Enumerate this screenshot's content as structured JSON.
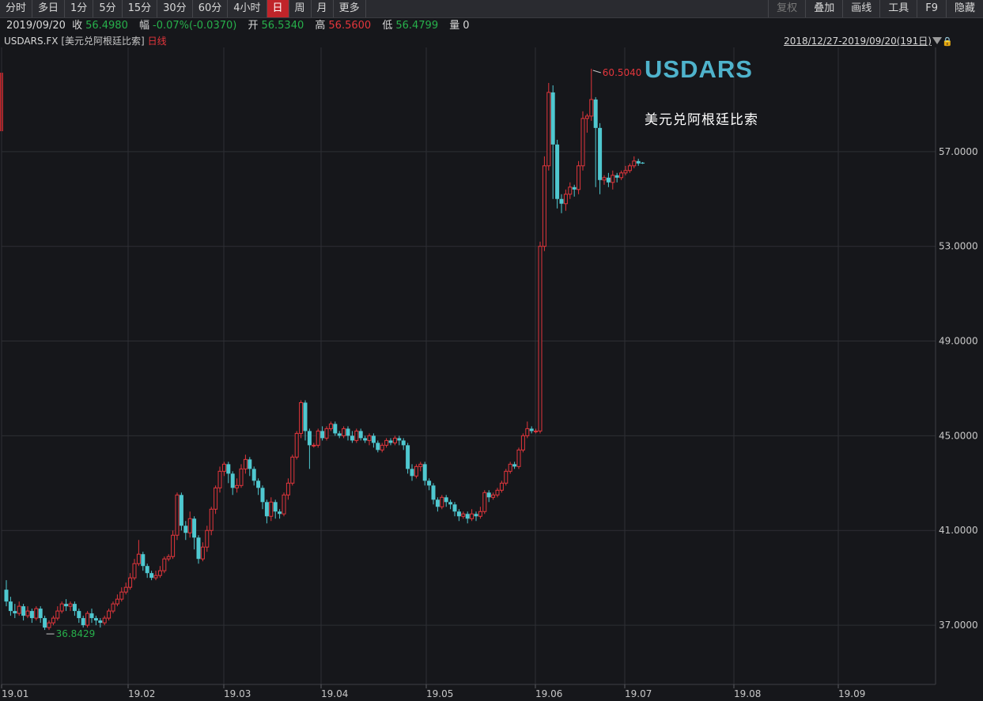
{
  "toolbar": {
    "periods": [
      "分时",
      "多日",
      "1分",
      "5分",
      "15分",
      "30分",
      "60分",
      "4小时",
      "日",
      "周",
      "月",
      "更多"
    ],
    "active_period": "日",
    "right_buttons": [
      "复权",
      "叠加",
      "画线",
      "工具",
      "F9",
      "隐藏"
    ]
  },
  "quote": {
    "date": "2019/09/20",
    "close_label": "收",
    "close": "56.4980",
    "change_label": "幅",
    "change": "-0.07%(-0.0370)",
    "open_label": "开",
    "open": "56.5340",
    "high_label": "高",
    "high": "56.5600",
    "low_label": "低",
    "low": "56.4799",
    "volume_label": "量",
    "volume": "0"
  },
  "info": {
    "symbol": "USDARS.FX",
    "name": "[美元兑阿根廷比索]",
    "type": "日线",
    "range": "2018/12/27-2019/09/20(191日)"
  },
  "watermark": {
    "title": "USDARS",
    "subtitle": "美元兑阿根廷比索"
  },
  "colors": {
    "up": "#e3363c",
    "down": "#4fc8d0",
    "grid": "#2e2f34",
    "background": "#16171b"
  },
  "chart_data": {
    "type": "candlestick",
    "y_ticks": [
      "57.0000",
      "53.0000",
      "49.0000",
      "45.0000",
      "41.0000",
      "37.0000"
    ],
    "x_ticks": [
      "19.01",
      "19.02",
      "19.03",
      "19.04",
      "19.05",
      "19.06",
      "19.07",
      "19.08",
      "19.09"
    ],
    "ylim": [
      34.5,
      61.4
    ],
    "max_label": "60.5040",
    "min_label": "36.8429",
    "grid": true,
    "series": [
      [
        38.5,
        38.0,
        38.9,
        37.8
      ],
      [
        38.0,
        37.6,
        38.2,
        37.4
      ],
      [
        37.6,
        37.5,
        37.9,
        37.3
      ],
      [
        37.5,
        37.8,
        38.0,
        37.4
      ],
      [
        37.8,
        37.4,
        37.9,
        37.2
      ],
      [
        37.4,
        37.6,
        37.8,
        37.3
      ],
      [
        37.6,
        37.3,
        37.7,
        37.1
      ],
      [
        37.3,
        37.7,
        37.8,
        37.2
      ],
      [
        37.7,
        37.3,
        37.8,
        37.1
      ],
      [
        37.3,
        36.9,
        37.4,
        36.8
      ],
      [
        36.9,
        37.1,
        37.2,
        36.8
      ],
      [
        37.1,
        37.3,
        37.4,
        37.0
      ],
      [
        37.3,
        37.6,
        37.8,
        37.2
      ],
      [
        37.6,
        37.9,
        38.0,
        37.5
      ],
      [
        37.9,
        37.8,
        38.1,
        37.6
      ],
      [
        37.8,
        37.9,
        38.0,
        37.6
      ],
      [
        37.9,
        37.6,
        38.0,
        37.4
      ],
      [
        37.6,
        37.3,
        37.7,
        37.1
      ],
      [
        37.3,
        37.0,
        37.4,
        36.9
      ],
      [
        37.0,
        37.5,
        37.6,
        36.9
      ],
      [
        37.5,
        37.3,
        37.7,
        37.1
      ],
      [
        37.3,
        37.2,
        37.4,
        37.0
      ],
      [
        37.2,
        37.1,
        37.3,
        36.9
      ],
      [
        37.1,
        37.3,
        37.4,
        37.0
      ],
      [
        37.3,
        37.6,
        37.7,
        37.2
      ],
      [
        37.6,
        37.9,
        38.0,
        37.5
      ],
      [
        37.9,
        38.1,
        38.3,
        37.8
      ],
      [
        38.1,
        38.4,
        38.6,
        38.0
      ],
      [
        38.4,
        38.6,
        38.8,
        38.3
      ],
      [
        38.6,
        39.0,
        39.2,
        38.5
      ],
      [
        39.0,
        39.6,
        39.8,
        38.9
      ],
      [
        39.6,
        40.0,
        40.6,
        39.5
      ],
      [
        40.0,
        39.5,
        40.1,
        39.3
      ],
      [
        39.5,
        39.2,
        39.6,
        39.0
      ],
      [
        39.2,
        39.0,
        39.3,
        38.9
      ],
      [
        39.0,
        39.1,
        39.3,
        38.9
      ],
      [
        39.1,
        39.3,
        39.5,
        39.0
      ],
      [
        39.3,
        39.8,
        39.9,
        39.2
      ],
      [
        39.8,
        39.9,
        40.0,
        39.7
      ],
      [
        39.9,
        40.8,
        41.0,
        39.8
      ],
      [
        40.8,
        42.5,
        42.6,
        40.6
      ],
      [
        42.5,
        41.2,
        42.6,
        41.0
      ],
      [
        41.2,
        40.9,
        41.4,
        40.6
      ],
      [
        40.9,
        41.5,
        41.8,
        40.7
      ],
      [
        41.5,
        40.7,
        41.6,
        40.2
      ],
      [
        40.7,
        39.8,
        40.8,
        39.6
      ],
      [
        39.8,
        40.3,
        40.5,
        39.7
      ],
      [
        40.3,
        41.0,
        41.2,
        40.1
      ],
      [
        41.0,
        41.9,
        42.0,
        40.8
      ],
      [
        41.9,
        42.8,
        42.9,
        41.7
      ],
      [
        42.8,
        43.5,
        43.7,
        42.6
      ],
      [
        43.5,
        43.8,
        43.9,
        43.3
      ],
      [
        43.8,
        43.4,
        43.9,
        43.0
      ],
      [
        43.4,
        42.8,
        43.5,
        42.5
      ],
      [
        42.8,
        42.9,
        43.2,
        42.6
      ],
      [
        42.9,
        43.6,
        43.8,
        42.8
      ],
      [
        43.6,
        44.0,
        44.2,
        43.4
      ],
      [
        44.0,
        43.6,
        44.1,
        43.3
      ],
      [
        43.6,
        43.1,
        43.7,
        42.9
      ],
      [
        43.1,
        42.8,
        43.2,
        42.5
      ],
      [
        42.8,
        42.2,
        42.9,
        41.9
      ],
      [
        42.2,
        41.6,
        42.3,
        41.3
      ],
      [
        41.6,
        42.2,
        42.4,
        41.4
      ],
      [
        42.2,
        41.8,
        42.3,
        41.5
      ],
      [
        41.8,
        41.7,
        41.9,
        41.5
      ],
      [
        41.7,
        42.5,
        42.6,
        41.6
      ],
      [
        42.5,
        43.0,
        43.2,
        42.3
      ],
      [
        43.0,
        44.1,
        44.2,
        42.9
      ],
      [
        44.1,
        45.1,
        45.2,
        44.0
      ],
      [
        45.1,
        46.4,
        46.5,
        44.9
      ],
      [
        46.4,
        45.2,
        46.5,
        44.8
      ],
      [
        45.2,
        44.6,
        45.3,
        43.6
      ],
      [
        44.6,
        44.6,
        44.7,
        44.5
      ],
      [
        44.6,
        45.2,
        45.3,
        44.5
      ],
      [
        45.2,
        44.9,
        45.4,
        44.8
      ],
      [
        44.9,
        45.3,
        45.4,
        44.8
      ],
      [
        45.3,
        45.5,
        45.6,
        45.2
      ],
      [
        45.5,
        45.1,
        45.6,
        45.0
      ],
      [
        45.1,
        45.0,
        45.2,
        44.9
      ],
      [
        45.0,
        45.3,
        45.4,
        44.9
      ],
      [
        45.3,
        45.0,
        45.4,
        44.8
      ],
      [
        45.0,
        44.8,
        45.2,
        44.7
      ],
      [
        44.8,
        45.2,
        45.3,
        44.7
      ],
      [
        45.2,
        44.9,
        45.3,
        44.8
      ],
      [
        44.9,
        44.8,
        45.0,
        44.7
      ],
      [
        44.8,
        45.0,
        45.1,
        44.6
      ],
      [
        45.0,
        44.7,
        45.1,
        44.5
      ],
      [
        44.7,
        44.4,
        44.8,
        44.3
      ],
      [
        44.4,
        44.6,
        44.7,
        44.3
      ],
      [
        44.6,
        44.8,
        44.9,
        44.5
      ],
      [
        44.8,
        44.7,
        44.9,
        44.6
      ],
      [
        44.7,
        44.9,
        45.0,
        44.6
      ],
      [
        44.9,
        44.8,
        45.0,
        44.6
      ],
      [
        44.8,
        44.6,
        44.9,
        44.4
      ],
      [
        44.6,
        43.6,
        44.7,
        43.4
      ],
      [
        43.6,
        43.3,
        43.8,
        43.1
      ],
      [
        43.3,
        43.7,
        43.8,
        43.2
      ],
      [
        43.7,
        43.8,
        43.9,
        43.5
      ],
      [
        43.8,
        43.1,
        43.9,
        42.9
      ],
      [
        43.1,
        42.9,
        43.2,
        42.7
      ],
      [
        42.9,
        42.3,
        43.0,
        42.1
      ],
      [
        42.3,
        42.0,
        42.4,
        41.8
      ],
      [
        42.0,
        42.4,
        42.5,
        41.9
      ],
      [
        42.4,
        42.2,
        42.5,
        42.0
      ],
      [
        42.2,
        42.1,
        42.3,
        41.9
      ],
      [
        42.1,
        41.8,
        42.2,
        41.6
      ],
      [
        41.8,
        41.6,
        41.9,
        41.4
      ],
      [
        41.6,
        41.7,
        41.8,
        41.5
      ],
      [
        41.7,
        41.5,
        41.8,
        41.3
      ],
      [
        41.5,
        41.7,
        41.9,
        41.4
      ],
      [
        41.7,
        41.6,
        41.8,
        41.4
      ],
      [
        41.6,
        41.8,
        42.0,
        41.5
      ],
      [
        41.8,
        42.6,
        42.7,
        41.7
      ],
      [
        42.6,
        42.4,
        42.7,
        42.2
      ],
      [
        42.4,
        42.5,
        42.6,
        42.3
      ],
      [
        42.5,
        42.7,
        42.8,
        42.4
      ],
      [
        42.7,
        43.0,
        43.1,
        42.6
      ],
      [
        43.0,
        43.5,
        43.6,
        42.9
      ],
      [
        43.5,
        43.8,
        43.9,
        43.4
      ],
      [
        43.8,
        43.7,
        43.9,
        43.6
      ],
      [
        43.7,
        44.4,
        44.5,
        43.6
      ],
      [
        44.4,
        45.0,
        45.1,
        44.3
      ],
      [
        45.0,
        45.3,
        45.6,
        44.9
      ],
      [
        45.3,
        45.2,
        45.4,
        45.1
      ],
      [
        45.2,
        45.2,
        45.3,
        45.1
      ],
      [
        45.2,
        53.0,
        53.2,
        45.1
      ],
      [
        53.0,
        56.4,
        56.8,
        52.8
      ],
      [
        56.4,
        59.5,
        59.9,
        56.2
      ],
      [
        59.5,
        57.3,
        59.8,
        55.0
      ],
      [
        57.3,
        55.0,
        57.5,
        54.6
      ],
      [
        55.0,
        54.8,
        55.2,
        54.4
      ],
      [
        54.8,
        55.2,
        55.4,
        54.5
      ],
      [
        55.2,
        55.5,
        55.7,
        55.0
      ],
      [
        55.5,
        55.4,
        55.6,
        55.1
      ],
      [
        55.4,
        56.4,
        56.6,
        55.2
      ],
      [
        56.4,
        58.4,
        58.7,
        56.2
      ],
      [
        58.4,
        58.5,
        58.6,
        57.8
      ],
      [
        58.5,
        59.2,
        60.5,
        58.3
      ],
      [
        59.2,
        58.0,
        59.3,
        55.5
      ],
      [
        58.0,
        55.8,
        58.2,
        55.2
      ],
      [
        55.8,
        55.9,
        56.0,
        55.6
      ],
      [
        55.9,
        55.7,
        56.1,
        55.5
      ],
      [
        55.7,
        56.0,
        56.2,
        55.4
      ],
      [
        56.0,
        55.9,
        56.1,
        55.7
      ],
      [
        55.9,
        56.1,
        56.2,
        55.8
      ],
      [
        56.1,
        56.2,
        56.4,
        56.0
      ],
      [
        56.2,
        56.4,
        56.5,
        56.1
      ],
      [
        56.4,
        56.6,
        56.8,
        56.3
      ],
      [
        56.6,
        56.5,
        56.7,
        56.4
      ],
      [
        56.534,
        56.498,
        56.56,
        56.4799
      ]
    ]
  }
}
